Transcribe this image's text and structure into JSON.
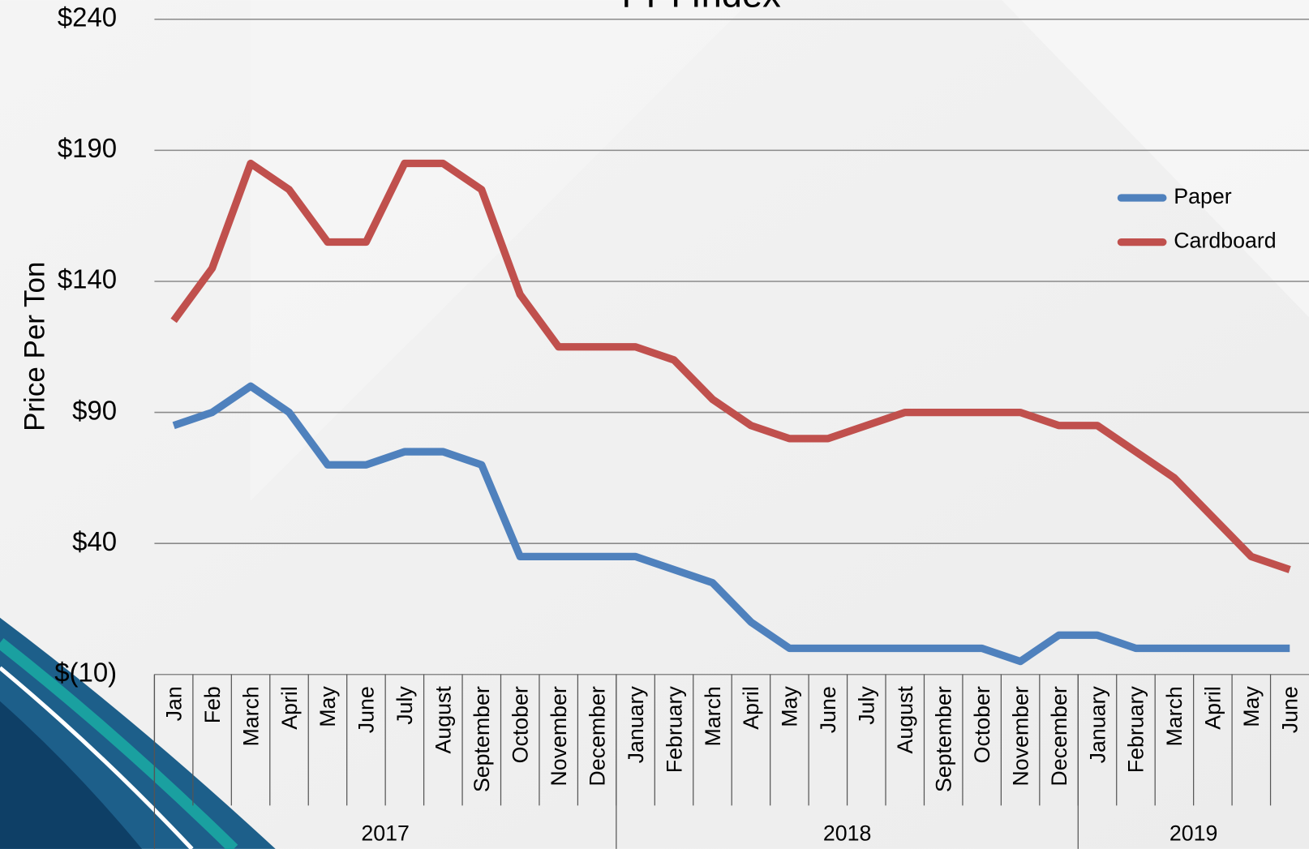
{
  "chart_data": {
    "type": "line",
    "title": "PPI Index",
    "y_label": "Price Per Ton",
    "categories": [
      "Jan",
      "Feb",
      "March",
      "April",
      "May",
      "June",
      "July",
      "August",
      "September",
      "October",
      "November",
      "December",
      "January",
      "February",
      "March",
      "April",
      "May",
      "June",
      "July",
      "August",
      "September",
      "October",
      "November",
      "December",
      "January",
      "February",
      "March",
      "April",
      "May",
      "June"
    ],
    "groups": [
      {
        "name": "2017",
        "count": 12
      },
      {
        "name": "2018",
        "count": 12
      },
      {
        "name": "2019",
        "count": 6
      }
    ],
    "series": [
      {
        "name": "Paper",
        "color": "#4f81bd",
        "values": [
          85,
          90,
          100,
          90,
          70,
          70,
          75,
          75,
          70,
          35,
          35,
          35,
          35,
          30,
          25,
          10,
          0,
          0,
          0,
          0,
          0,
          0,
          -5,
          5,
          5,
          0,
          0,
          0,
          0,
          0
        ]
      },
      {
        "name": "Cardboard",
        "color": "#c0504d",
        "values": [
          125,
          145,
          185,
          175,
          155,
          155,
          185,
          185,
          175,
          135,
          115,
          115,
          115,
          110,
          95,
          85,
          80,
          80,
          85,
          90,
          90,
          90,
          90,
          85,
          85,
          75,
          65,
          50,
          35,
          30
        ]
      }
    ],
    "ylim": [
      -10,
      240
    ],
    "yticks": [
      {
        "value": -10,
        "label": "$(10)"
      },
      {
        "value": 40,
        "label": "$40"
      },
      {
        "value": 90,
        "label": "$90"
      },
      {
        "value": 140,
        "label": "$140"
      },
      {
        "value": 190,
        "label": "$190"
      },
      {
        "value": 240,
        "label": "$240"
      }
    ],
    "grid": true,
    "legend": "right"
  }
}
